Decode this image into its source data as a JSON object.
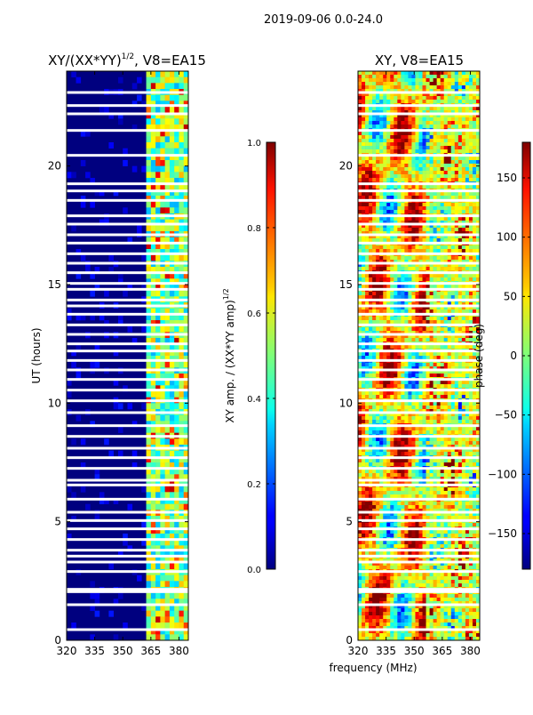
{
  "figure": {
    "suptitle": "2019-09-06 0.0-24.0",
    "xlabel_shared": "frequency (MHz)"
  },
  "chart_data": [
    {
      "type": "heatmap",
      "title": "XY/(XX*YY)",
      "title_exponent": "1/2",
      "title_suffix": ", V8=EA15",
      "xlabel": "",
      "ylabel": "UT (hours)",
      "xlim": [
        320,
        385
      ],
      "ylim": [
        0,
        24
      ],
      "xticks": [
        320,
        335,
        350,
        365,
        380
      ],
      "yticks": [
        0,
        5,
        10,
        15,
        20
      ],
      "colorbar": {
        "label": "XY amp. / (XX*YY amp)",
        "label_exponent": "1/2",
        "colormap": "jet",
        "range": [
          0.0,
          1.0
        ],
        "ticks": [
          "0.0",
          "0.2",
          "0.4",
          "0.6",
          "0.8",
          "1.0"
        ],
        "tick_values": [
          0.0,
          0.2,
          0.4,
          0.6,
          0.8,
          1.0
        ]
      }
    },
    {
      "type": "heatmap",
      "title": "XY, V8=EA15",
      "xlabel": "frequency (MHz)",
      "ylabel": "",
      "xlim": [
        320,
        385
      ],
      "ylim": [
        0,
        24
      ],
      "xticks": [
        320,
        335,
        350,
        365,
        380
      ],
      "yticks": [
        0,
        5,
        10,
        15,
        20
      ],
      "colorbar": {
        "label": "phase (deg)",
        "colormap": "jet",
        "range": [
          -180,
          180
        ],
        "ticks": [
          "150",
          "100",
          "50",
          "0",
          "−50",
          "−100",
          "−150"
        ],
        "tick_values": [
          150,
          100,
          50,
          0,
          -50,
          -100,
          -150
        ]
      }
    }
  ],
  "flagged_hours": [
    0.45,
    1.5,
    2.05,
    2.15,
    2.9,
    3.3,
    3.55,
    3.8,
    4.25,
    4.7,
    5.05,
    5.4,
    5.95,
    6.55,
    6.75,
    7.25,
    7.7,
    8.1,
    8.6,
    9.05,
    9.6,
    10.1,
    10.55,
    11.0,
    11.4,
    11.8,
    12.2,
    12.5,
    12.9,
    13.3,
    13.75,
    14.1,
    14.35,
    14.8,
    15.05,
    15.5,
    15.9,
    16.3,
    16.75,
    17.1,
    17.55,
    17.9,
    18.55,
    18.95,
    19.25,
    20.45,
    21.5,
    22.2,
    22.55,
    23.1
  ]
}
